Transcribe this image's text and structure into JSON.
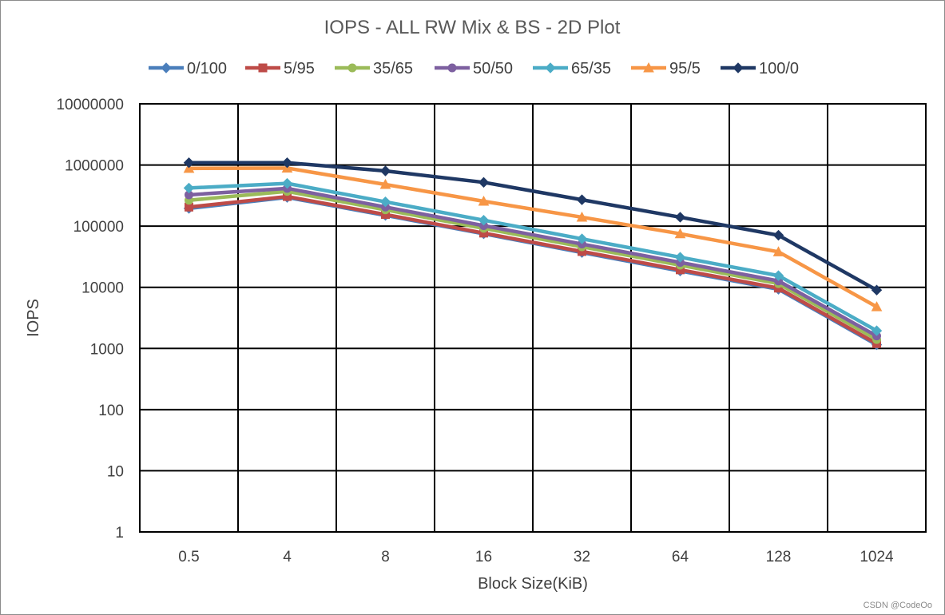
{
  "chart_data": {
    "type": "line",
    "title": "IOPS - ALL RW Mix & BS - 2D Plot",
    "xlabel": "Block Size(KiB)",
    "ylabel": "IOPS",
    "categories": [
      "0.5",
      "4",
      "8",
      "16",
      "32",
      "64",
      "128",
      "1024"
    ],
    "y_scale": "log",
    "ylim": [
      1,
      10000000
    ],
    "y_ticks": [
      "1",
      "10",
      "100",
      "1000",
      "10000",
      "100000",
      "1000000",
      "10000000"
    ],
    "grid": true,
    "legend_position": "top",
    "series": [
      {
        "name": "0/100",
        "color": "#4a7ebb",
        "marker": "diamond",
        "values": [
          195000,
          295000,
          150000,
          75000,
          37000,
          18500,
          9300,
          1150
        ]
      },
      {
        "name": "5/95",
        "color": "#be4b48",
        "marker": "square",
        "values": [
          205000,
          305000,
          155000,
          77000,
          38500,
          19300,
          9700,
          1200
        ]
      },
      {
        "name": "35/65",
        "color": "#9bbb59",
        "marker": "circle",
        "values": [
          265000,
          370000,
          185000,
          92000,
          46000,
          23000,
          11500,
          1400
        ]
      },
      {
        "name": "50/50",
        "color": "#7d60a0",
        "marker": "circle",
        "values": [
          325000,
          415000,
          205000,
          102000,
          51000,
          25500,
          12700,
          1600
        ]
      },
      {
        "name": "65/35",
        "color": "#4bacc6",
        "marker": "diamond",
        "values": [
          420000,
          500000,
          250000,
          125000,
          62000,
          31000,
          15500,
          1950
        ]
      },
      {
        "name": "95/5",
        "color": "#f79646",
        "marker": "triangle",
        "values": [
          880000,
          890000,
          480000,
          255000,
          140000,
          75000,
          38000,
          4800
        ]
      },
      {
        "name": "100/0",
        "color": "#1f3864",
        "marker": "diamond",
        "values": [
          1090000,
          1090000,
          800000,
          520000,
          270000,
          140000,
          71000,
          9000
        ]
      }
    ]
  },
  "watermark": "CSDN @CodeOo"
}
